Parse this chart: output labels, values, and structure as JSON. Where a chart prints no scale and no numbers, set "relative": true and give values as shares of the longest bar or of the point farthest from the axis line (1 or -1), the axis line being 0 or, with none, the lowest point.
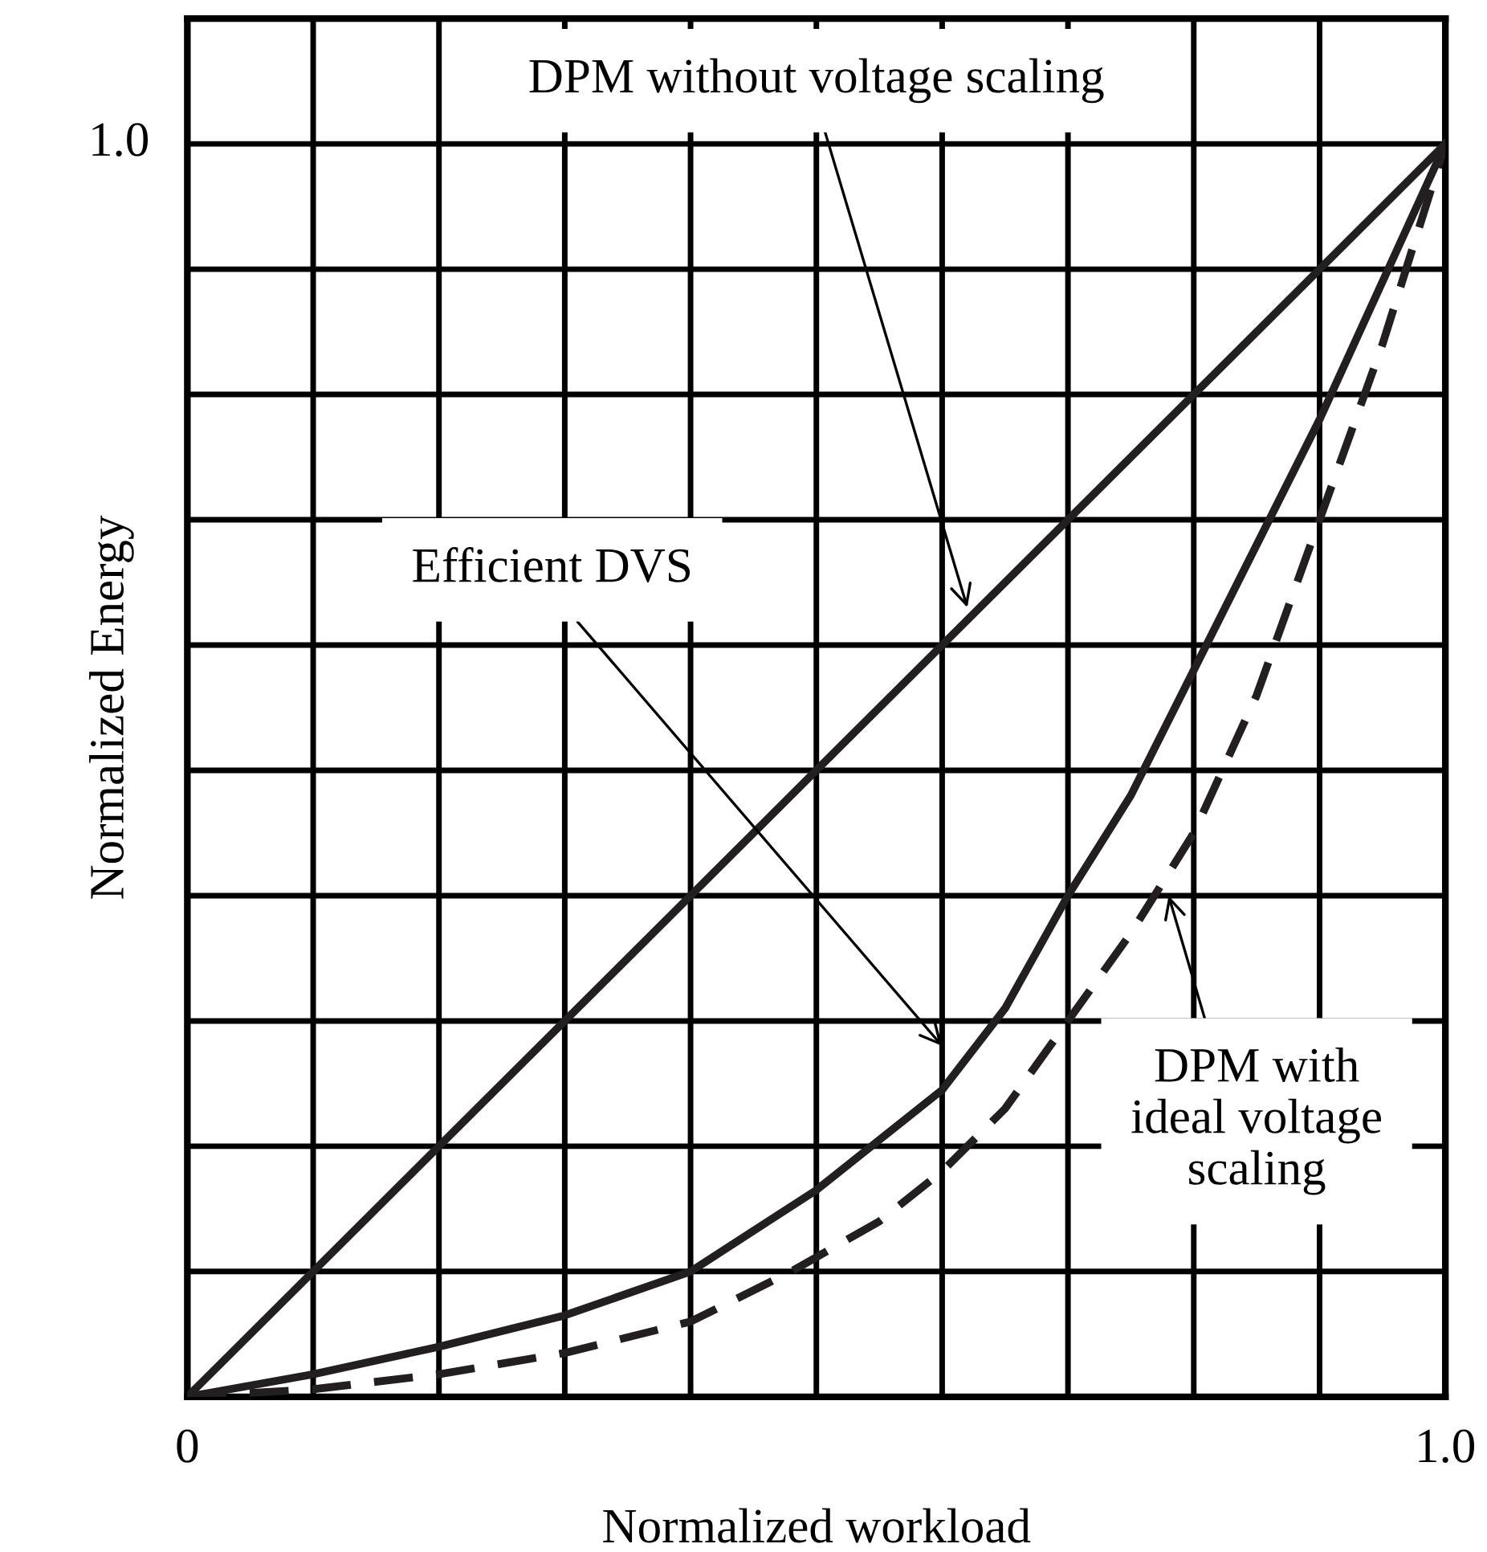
{
  "chart_data": {
    "type": "line",
    "xlabel": "Normalized workload",
    "ylabel": "Normalized Energy",
    "xlim": [
      0,
      1
    ],
    "relative": true,
    "xticks": [
      {
        "value": 0,
        "label": "0"
      },
      {
        "value": 0.1,
        "label": null
      },
      {
        "value": 0.2,
        "label": null
      },
      {
        "value": 0.3,
        "label": null
      },
      {
        "value": 0.4,
        "label": null
      },
      {
        "value": 0.5,
        "label": null
      },
      {
        "value": 0.6,
        "label": null
      },
      {
        "value": 0.7,
        "label": null
      },
      {
        "value": 0.8,
        "label": null
      },
      {
        "value": 0.9,
        "label": null
      },
      {
        "value": 1.0,
        "label": "1.0"
      }
    ],
    "grid": true,
    "series": [
      {
        "color": "#231f20",
        "line_style": "solid",
        "x": [
          0,
          1
        ],
        "values": [
          0,
          1
        ]
      },
      {
        "color": "#231f20",
        "line_style": "solid",
        "x": [
          0,
          0.1,
          0.2,
          0.3,
          0.4,
          0.5,
          0.6,
          0.65,
          0.7,
          0.75,
          0.8,
          0.85,
          0.9,
          0.95,
          1
        ],
        "values": [
          0,
          0.018,
          0.04,
          0.065,
          0.1,
          0.165,
          0.245,
          0.31,
          0.4,
          0.48,
          0.58,
          0.68,
          0.78,
          0.89,
          1
        ]
      },
      {
        "color": "#231f20",
        "line_style": "dashed",
        "x": [
          0,
          0.1,
          0.2,
          0.3,
          0.4,
          0.48,
          0.55,
          0.6,
          0.65,
          0.7,
          0.75,
          0.8,
          0.85,
          0.9,
          0.95,
          1
        ],
        "values": [
          0,
          0.006,
          0.018,
          0.035,
          0.06,
          0.1,
          0.14,
          0.18,
          0.23,
          0.3,
          0.37,
          0.45,
          0.56,
          0.7,
          0.84,
          1
        ]
      }
    ],
    "annotations": [
      "1.0",
      "DPM without voltage scaling",
      "Efficient DVS",
      "DPM with\nideal voltage\nscaling"
    ]
  }
}
